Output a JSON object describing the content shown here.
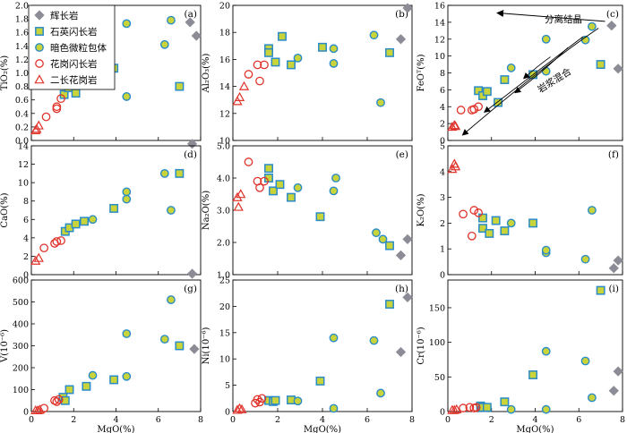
{
  "legend": {
    "items": [
      {
        "label": "辉长岩",
        "marker": "diamond"
      },
      {
        "label": "石英闪长岩",
        "marker": "square"
      },
      {
        "label": "暗色微粒包体",
        "marker": "circle-filled"
      },
      {
        "label": "花岗闪长岩",
        "marker": "circle-open"
      },
      {
        "label": "二长花岗岩",
        "marker": "triangle"
      }
    ]
  },
  "colors": {
    "gabbro": "#8c8c96",
    "qdiorite_fill": "#c8d43a",
    "qdiorite_edge": "#2a8bc7",
    "enclave_fill": "#c8d43a",
    "enclave_edge": "#2a8bc7",
    "granodiorite": "#e0332a",
    "monzogranite": "#e0332a"
  },
  "annotations": {
    "fractional_crystallization": "分离结晶",
    "magma_mixing": "岩浆混合"
  },
  "chart_data": [
    {
      "type": "scatter",
      "panel": "(a)",
      "xlabel": "MgO(%)",
      "ylabel": "TiO₂(%)",
      "xlim": [
        0,
        8
      ],
      "ylim": [
        0,
        2.0
      ],
      "yticks": [
        "0.0",
        "0.2",
        "0.4",
        "0.6",
        "0.8",
        "1.0",
        "1.2",
        "1.4",
        "1.6",
        "1.8",
        "2.0"
      ],
      "xticks": [
        "0",
        "2",
        "4",
        "6",
        "8"
      ],
      "series": [
        {
          "name": "辉长岩",
          "x": [
            7.5,
            7.8,
            7.6
          ],
          "y": [
            1.75,
            1.55,
            -0.05
          ]
        },
        {
          "name": "石英闪长岩",
          "x": [
            1.55,
            1.75,
            2.1,
            2.5,
            3.9,
            7.0
          ],
          "y": [
            0.68,
            0.78,
            0.7,
            0.88,
            1.07,
            0.8
          ]
        },
        {
          "name": "暗色微粒包体",
          "x": [
            4.5,
            4.5,
            6.3,
            6.6
          ],
          "y": [
            1.73,
            0.65,
            1.42,
            1.78
          ]
        },
        {
          "name": "花岗闪长岩",
          "x": [
            0.7,
            1.2,
            1.2,
            1.4
          ],
          "y": [
            0.35,
            0.47,
            0.5,
            0.62
          ]
        },
        {
          "name": "二长花岗岩",
          "x": [
            0.2,
            0.25,
            0.35
          ],
          "y": [
            0.15,
            0.17,
            0.22
          ]
        }
      ]
    },
    {
      "type": "scatter",
      "panel": "(b)",
      "xlabel": "MgO(%)",
      "ylabel": "Al₂O₃(%)",
      "xlim": [
        0,
        8
      ],
      "ylim": [
        10,
        20
      ],
      "yticks": [
        "10",
        "12",
        "14",
        "16",
        "18",
        "20"
      ],
      "xticks": [
        "0",
        "2",
        "4",
        "6",
        "8"
      ],
      "series": [
        {
          "name": "辉长岩",
          "x": [
            7.5,
            7.8
          ],
          "y": [
            17.5,
            19.8
          ]
        },
        {
          "name": "石英闪长岩",
          "x": [
            1.6,
            1.6,
            1.9,
            2.2,
            2.6,
            4.0,
            7.0
          ],
          "y": [
            16.8,
            16.5,
            15.8,
            17.7,
            15.6,
            16.9,
            16.5
          ]
        },
        {
          "name": "暗色微粒包体",
          "x": [
            2.9,
            4.5,
            4.5,
            6.3,
            6.6
          ],
          "y": [
            16.1,
            16.8,
            15.7,
            17.8,
            12.8
          ]
        },
        {
          "name": "花岗闪长岩",
          "x": [
            0.7,
            1.1,
            1.2,
            1.4
          ],
          "y": [
            14.9,
            15.6,
            14.4,
            15.6
          ]
        },
        {
          "name": "二长花岗岩",
          "x": [
            0.2,
            0.3,
            0.5
          ],
          "y": [
            12.9,
            13.2,
            14.0
          ]
        }
      ]
    },
    {
      "type": "scatter",
      "panel": "(c)",
      "xlabel": "MgO(%)",
      "ylabel": "FeOᵀ(%)",
      "xlim": [
        0,
        8
      ],
      "ylim": [
        0,
        16
      ],
      "yticks": [
        "0",
        "2",
        "4",
        "6",
        "8",
        "10",
        "12",
        "14",
        "16"
      ],
      "xticks": [
        "0",
        "2",
        "4",
        "6",
        "8"
      ],
      "series": [
        {
          "name": "辉长岩",
          "x": [
            7.5,
            7.8
          ],
          "y": [
            13.6,
            8.5
          ]
        },
        {
          "name": "石英闪长岩",
          "x": [
            1.4,
            1.6,
            1.8,
            2.3,
            2.6,
            3.9,
            7.0
          ],
          "y": [
            5.9,
            5.3,
            5.8,
            4.5,
            7.2,
            7.8,
            9.0
          ]
        },
        {
          "name": "暗色微粒包体",
          "x": [
            2.9,
            4.5,
            4.5,
            6.3,
            6.6
          ],
          "y": [
            8.6,
            12.0,
            8.2,
            11.9,
            13.5
          ]
        },
        {
          "name": "花岗闪长岩",
          "x": [
            0.6,
            1.1,
            1.2,
            1.4
          ],
          "y": [
            3.6,
            3.6,
            3.7,
            4.0
          ]
        },
        {
          "name": "二长花岗岩",
          "x": [
            0.2,
            0.3,
            0.35
          ],
          "y": [
            1.6,
            1.8,
            1.7
          ]
        }
      ]
    },
    {
      "type": "scatter",
      "panel": "(d)",
      "xlabel": "MgO(%)",
      "ylabel": "CaO(%)",
      "xlim": [
        0,
        8
      ],
      "ylim": [
        0,
        14
      ],
      "yticks": [
        "0",
        "2",
        "4",
        "6",
        "8",
        "10",
        "12",
        "14"
      ],
      "xticks": [
        "0",
        "2",
        "4",
        "6",
        "8"
      ],
      "series": [
        {
          "name": "辉长岩",
          "x": [
            7.6
          ],
          "y": [
            0.1
          ]
        },
        {
          "name": "石英闪长岩",
          "x": [
            1.6,
            1.8,
            2.1,
            2.5,
            3.9,
            7.0
          ],
          "y": [
            4.7,
            5.1,
            5.5,
            5.8,
            7.2,
            11.0
          ]
        },
        {
          "name": "暗色微粒包体",
          "x": [
            2.9,
            4.5,
            4.5,
            6.3,
            6.6
          ],
          "y": [
            6.0,
            9.0,
            8.2,
            11.0,
            7.0
          ]
        },
        {
          "name": "花岗闪长岩",
          "x": [
            0.6,
            1.1,
            1.2,
            1.4
          ],
          "y": [
            2.9,
            3.4,
            3.6,
            3.7
          ]
        },
        {
          "name": "二长花岗岩",
          "x": [
            0.2,
            0.35
          ],
          "y": [
            1.5,
            1.8
          ]
        }
      ]
    },
    {
      "type": "scatter",
      "panel": "(e)",
      "xlabel": "MgO(%)",
      "ylabel": "Na₂O(%)",
      "xlim": [
        0,
        8
      ],
      "ylim": [
        1.0,
        5.0
      ],
      "yticks": [
        "1.0",
        "2.0",
        "3.0",
        "4.0",
        "5.0"
      ],
      "xticks": [
        "0",
        "2",
        "4",
        "6",
        "8"
      ],
      "series": [
        {
          "name": "辉长岩",
          "x": [
            7.5,
            7.8
          ],
          "y": [
            1.6,
            2.1
          ]
        },
        {
          "name": "石英闪长岩",
          "x": [
            1.6,
            1.6,
            1.8,
            2.1,
            2.6,
            3.9,
            7.0
          ],
          "y": [
            4.3,
            4.0,
            3.6,
            3.8,
            3.4,
            2.8,
            1.9
          ]
        },
        {
          "name": "暗色微粒包体",
          "x": [
            2.9,
            4.5,
            4.6,
            6.4,
            6.7
          ],
          "y": [
            3.7,
            3.6,
            4.0,
            2.3,
            2.1
          ]
        },
        {
          "name": "花岗闪长岩",
          "x": [
            0.7,
            1.1,
            1.2,
            1.4
          ],
          "y": [
            4.5,
            3.9,
            3.7,
            3.9
          ]
        },
        {
          "name": "二长花岗岩",
          "x": [
            0.2,
            0.35,
            0.25
          ],
          "y": [
            3.4,
            3.5,
            3.1
          ]
        }
      ]
    },
    {
      "type": "scatter",
      "panel": "(f)",
      "xlabel": "MgO(%)",
      "ylabel": "K₂O(%)",
      "xlim": [
        0,
        8
      ],
      "ylim": [
        0,
        5
      ],
      "yticks": [
        "0",
        "1",
        "2",
        "3",
        "4",
        "5"
      ],
      "xticks": [
        "0",
        "2",
        "4",
        "6",
        "8"
      ],
      "series": [
        {
          "name": "辉长岩",
          "x": [
            7.6,
            7.8
          ],
          "y": [
            0.25,
            0.55
          ]
        },
        {
          "name": "石英闪长岩",
          "x": [
            1.6,
            1.6,
            1.9,
            2.2,
            2.6,
            3.9
          ],
          "y": [
            2.2,
            1.8,
            1.6,
            2.1,
            1.7,
            2.0
          ]
        },
        {
          "name": "暗色微粒包体",
          "x": [
            2.9,
            4.5,
            4.5,
            6.3,
            6.6
          ],
          "y": [
            2.0,
            0.85,
            0.95,
            0.6,
            2.5
          ]
        },
        {
          "name": "花岗闪长岩",
          "x": [
            0.7,
            1.1,
            1.2,
            1.4
          ],
          "y": [
            2.35,
            1.5,
            2.5,
            2.4
          ]
        },
        {
          "name": "二长花岗岩",
          "x": [
            0.2,
            0.3,
            0.35
          ],
          "y": [
            4.1,
            4.3,
            4.2
          ]
        }
      ]
    },
    {
      "type": "scatter",
      "panel": "(g)",
      "xlabel": "MgO(%)",
      "ylabel": "V(10⁻⁶)",
      "xlim": [
        0,
        8
      ],
      "ylim": [
        0,
        600
      ],
      "yticks": [
        "0",
        "100",
        "200",
        "300",
        "400",
        "500",
        "600"
      ],
      "xticks": [
        "0",
        "2",
        "4",
        "6",
        "8"
      ],
      "series": [
        {
          "name": "辉长岩",
          "x": [
            7.7
          ],
          "y": [
            285
          ]
        },
        {
          "name": "石英闪长岩",
          "x": [
            1.5,
            1.6,
            1.8,
            2.6,
            3.9,
            7.0
          ],
          "y": [
            65,
            50,
            100,
            115,
            145,
            300
          ]
        },
        {
          "name": "暗色微粒包体",
          "x": [
            2.9,
            4.5,
            4.5,
            6.3,
            6.6
          ],
          "y": [
            165,
            355,
            160,
            330,
            510
          ]
        },
        {
          "name": "花岗闪长岩",
          "x": [
            0.6,
            1.1,
            1.2,
            1.3
          ],
          "y": [
            15,
            50,
            45,
            55
          ]
        },
        {
          "name": "二长花岗岩",
          "x": [
            0.2,
            0.3,
            0.4
          ],
          "y": [
            5,
            5,
            8
          ]
        }
      ]
    },
    {
      "type": "scatter",
      "panel": "(h)",
      "xlabel": "MgO(%)",
      "ylabel": "Ni(10⁻⁶)",
      "xlim": [
        0,
        8
      ],
      "ylim": [
        0,
        25
      ],
      "yticks": [
        "0",
        "5",
        "10",
        "15",
        "20",
        "25"
      ],
      "xticks": [
        "0",
        "2",
        "4",
        "6",
        "8"
      ],
      "series": [
        {
          "name": "辉长岩",
          "x": [
            7.5,
            7.8
          ],
          "y": [
            11.3,
            21.7
          ]
        },
        {
          "name": "石英闪长岩",
          "x": [
            1.6,
            1.8,
            1.9,
            2.6,
            3.9,
            7.0
          ],
          "y": [
            2.1,
            1.9,
            2.1,
            2.2,
            5.8,
            20.4
          ]
        },
        {
          "name": "暗色微粒包体",
          "x": [
            2.9,
            4.5,
            4.5,
            6.3,
            6.6
          ],
          "y": [
            2.0,
            14.0,
            0.6,
            13.5,
            3.5
          ]
        },
        {
          "name": "花岗闪长岩",
          "x": [
            1.0,
            1.1,
            1.2,
            1.3
          ],
          "y": [
            1.6,
            2.3,
            1.8,
            2.5
          ]
        },
        {
          "name": "二长花岗岩",
          "x": [
            0.2,
            0.3,
            0.4
          ],
          "y": [
            0.3,
            0.6,
            0.4
          ]
        }
      ]
    },
    {
      "type": "scatter",
      "panel": "(i)",
      "xlabel": "MgO(%)",
      "ylabel": "Cr(10⁻⁶)",
      "xlim": [
        0,
        8
      ],
      "ylim": [
        0,
        190
      ],
      "yticks": [
        "0",
        "50",
        "100",
        "150"
      ],
      "xticks": [
        "0",
        "2",
        "4",
        "6",
        "8"
      ],
      "series": [
        {
          "name": "辉长岩",
          "x": [
            7.6,
            7.8
          ],
          "y": [
            30,
            58
          ]
        },
        {
          "name": "石英闪长岩",
          "x": [
            1.5,
            1.6,
            1.8,
            2.6,
            3.9,
            7.0
          ],
          "y": [
            8,
            6,
            6,
            14,
            53,
            175
          ]
        },
        {
          "name": "暗色微粒包体",
          "x": [
            2.9,
            4.5,
            4.5,
            6.3,
            6.6
          ],
          "y": [
            3,
            87,
            3,
            73,
            20
          ]
        },
        {
          "name": "花岗闪长岩",
          "x": [
            0.7,
            1.0,
            1.2,
            1.3
          ],
          "y": [
            5,
            6,
            5,
            6
          ]
        },
        {
          "name": "二长花岗岩",
          "x": [
            0.2,
            0.3,
            0.4
          ],
          "y": [
            2,
            2,
            3
          ]
        }
      ]
    }
  ]
}
